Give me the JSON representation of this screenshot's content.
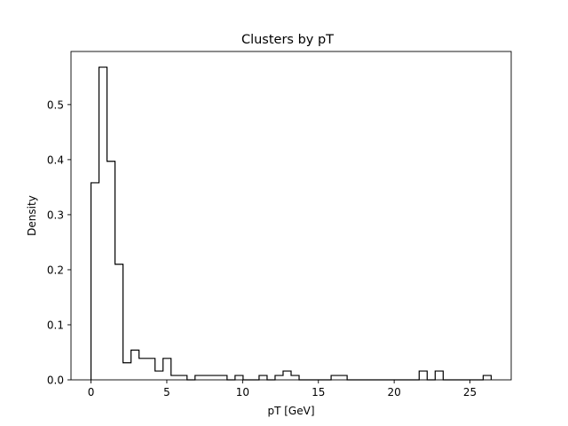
{
  "chart_data": {
    "type": "histogram",
    "title": "Clusters by pT",
    "xlabel": "pT [GeV]",
    "ylabel": "Density",
    "xlim": [
      -1.32,
      27.72
    ],
    "ylim": [
      0,
      0.5965
    ],
    "xticks": [
      0,
      5,
      10,
      15,
      20,
      25
    ],
    "xtick_labels": [
      "0",
      "5",
      "10",
      "15",
      "20",
      "25"
    ],
    "yticks": [
      0.0,
      0.1,
      0.2,
      0.3,
      0.4,
      0.5
    ],
    "ytick_labels": [
      "0.0",
      "0.1",
      "0.2",
      "0.3",
      "0.4",
      "0.5"
    ],
    "grid": false,
    "legend": false,
    "style": "step",
    "line_color": "#000000",
    "bin_edges": [
      0,
      0.528,
      1.056,
      1.584,
      2.112,
      2.64,
      3.168,
      3.696,
      4.224,
      4.752,
      5.28,
      5.808,
      6.336,
      6.864,
      7.392,
      7.92,
      8.448,
      8.976,
      9.504,
      10.032,
      10.56,
      11.088,
      11.616,
      12.144,
      12.672,
      13.2,
      13.728,
      14.256,
      14.784,
      15.312,
      15.84,
      16.368,
      16.896,
      17.424,
      17.952,
      18.48,
      19.008,
      19.536,
      20.064,
      20.592,
      21.12,
      21.648,
      22.176,
      22.704,
      23.232,
      23.76,
      24.288,
      24.816,
      25.344,
      25.872,
      26.4
    ],
    "values": [
      0.358,
      0.568,
      0.397,
      0.21,
      0.031,
      0.054,
      0.039,
      0.039,
      0.016,
      0.039,
      0.008,
      0.008,
      0,
      0.008,
      0.008,
      0.008,
      0.008,
      0,
      0.008,
      0,
      0,
      0.008,
      0,
      0.008,
      0.016,
      0.008,
      0,
      0,
      0,
      0,
      0.008,
      0.008,
      0,
      0,
      0,
      0,
      0,
      0,
      0,
      0,
      0,
      0.016,
      0,
      0.016,
      0,
      0,
      0,
      0,
      0,
      0.008
    ]
  }
}
